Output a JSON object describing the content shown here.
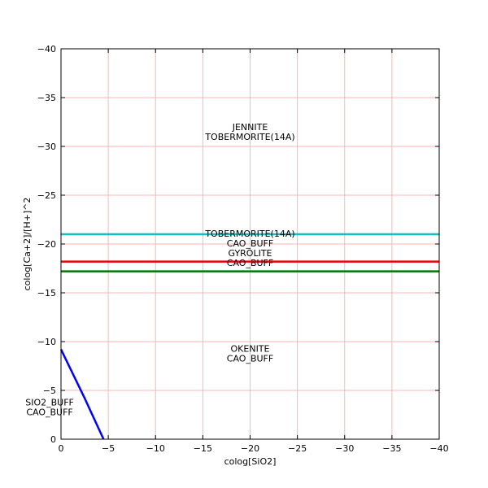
{
  "chart_data": {
    "type": "line",
    "xlabel": "colog[SiO2]",
    "ylabel": "colog[Ca+2]/[H+]^2",
    "xlim": [
      0,
      -40
    ],
    "ylim": [
      0,
      -40
    ],
    "x_ticks": [
      0,
      -5,
      -10,
      -15,
      -20,
      -25,
      -30,
      -35,
      -40
    ],
    "y_ticks": [
      0,
      -5,
      -10,
      -15,
      -20,
      -25,
      -30,
      -35,
      -40
    ],
    "x_tick_labels": [
      "0",
      "−5",
      "−10",
      "−15",
      "−20",
      "−25",
      "−30",
      "−35",
      "−40"
    ],
    "y_tick_labels": [
      "0",
      "−5",
      "−10",
      "−15",
      "−20",
      "−25",
      "−30",
      "−35",
      "−40"
    ],
    "grid": true,
    "grid_color": "#ffb3b3",
    "series": [
      {
        "color": "#17bcbc",
        "x": [
          0,
          -40
        ],
        "y": [
          -21.0,
          -21.0
        ]
      },
      {
        "color": "#ee0000",
        "x": [
          0,
          -40
        ],
        "y": [
          -18.2,
          -18.2
        ]
      },
      {
        "color": "#007700",
        "x": [
          0,
          -40
        ],
        "y": [
          -17.2,
          -17.2
        ]
      },
      {
        "color": "#0000ff",
        "x": [
          0,
          -2.5,
          -4.5
        ],
        "y": [
          -9.2,
          -4.2,
          0
        ]
      }
    ],
    "annotations": [
      {
        "lines": [
          "JENNITE",
          "TOBERMORITE(14A)"
        ],
        "x": -20,
        "y": -31.5
      },
      {
        "lines": [
          "TOBERMORITE(14A)",
          "CAO_BUFF",
          "GYROLITE",
          "CAO_BUFF"
        ],
        "x": -20,
        "y": -19.6
      },
      {
        "lines": [
          "OKENITE",
          "CAO_BUFF"
        ],
        "x": -20,
        "y": -8.8
      },
      {
        "lines": [
          "SIO2_BUFF",
          "CAO_BUFF"
        ],
        "x": 1.2,
        "y": -3.3
      }
    ]
  }
}
